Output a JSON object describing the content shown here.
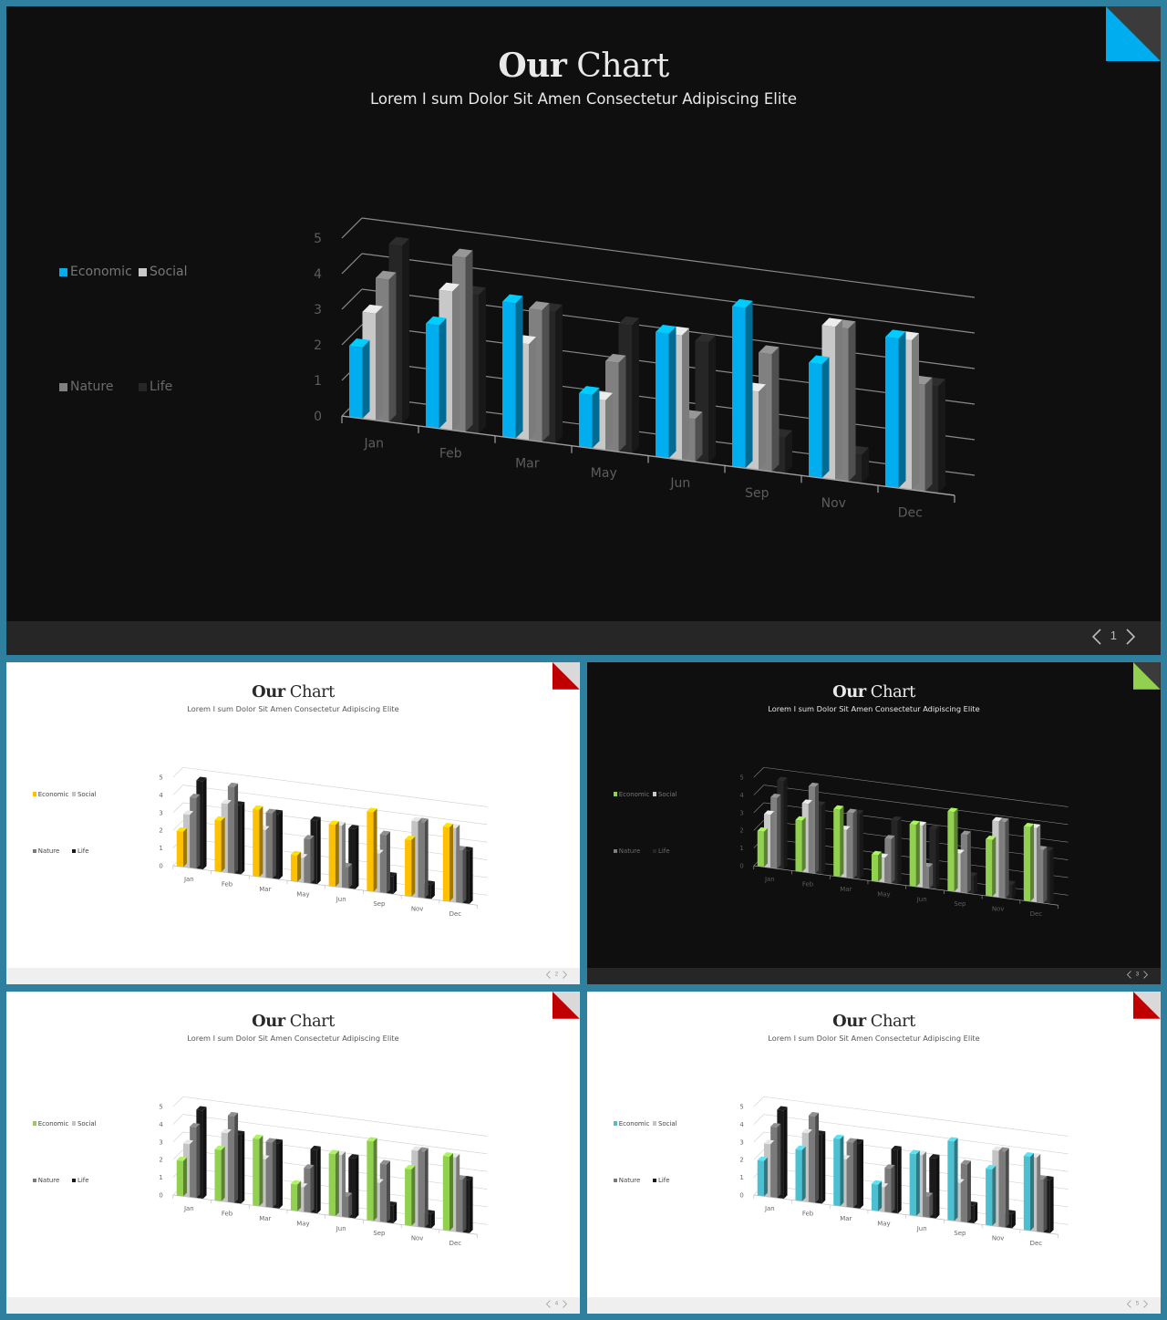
{
  "slides": [
    {
      "id": "s1",
      "title_bold": "Our",
      "title_rest": "Chart",
      "subtitle": "Lorem I sum Dolor Sit Amen Consectetur Adipiscing Elite",
      "page": "1",
      "theme": "dark",
      "accent": "#00aeef",
      "corner_back": "#3b3b3b"
    },
    {
      "id": "s2",
      "title_bold": "Our",
      "title_rest": "Chart",
      "subtitle": "Lorem I sum Dolor Sit Amen Consectetur Adipiscing Elite",
      "page": "2",
      "theme": "light",
      "accent": "#ffc000",
      "corner_back": "#d9d9d9",
      "corner": "#c00000"
    },
    {
      "id": "s3",
      "title_bold": "Our",
      "title_rest": "Chart",
      "subtitle": "Lorem I sum Dolor Sit Amen Consectetur Adipiscing Elite",
      "page": "3",
      "theme": "dark",
      "accent": "#92d050",
      "corner_back": "#3b3b3b"
    },
    {
      "id": "s4",
      "title_bold": "Our",
      "title_rest": "Chart",
      "subtitle": "Lorem I sum Dolor Sit Amen Consectetur Adipiscing Elite",
      "page": "4",
      "theme": "light",
      "accent": "#92d050",
      "corner_back": "#d9d9d9",
      "corner": "#c00000"
    },
    {
      "id": "s5",
      "title_bold": "Our",
      "title_rest": "Chart",
      "subtitle": "Lorem I sum Dolor Sit Amen Consectetur Adipiscing Elite",
      "page": "5",
      "theme": "light",
      "accent": "#4bc0d0",
      "corner_back": "#d9d9d9",
      "corner": "#c00000"
    }
  ],
  "icons": {
    "prev": "chevron-left-icon",
    "next": "chevron-right-icon"
  },
  "chart_data": {
    "type": "bar",
    "categories": [
      "Jan",
      "Feb",
      "Mar",
      "May",
      "Jun",
      "Sep",
      "Nov",
      "Dec"
    ],
    "series": [
      {
        "name": "Economic",
        "values": [
          2.0,
          2.9,
          3.8,
          1.5,
          3.5,
          4.5,
          3.2,
          4.2
        ]
      },
      {
        "name": "Social",
        "values": [
          3.0,
          3.9,
          2.7,
          1.4,
          3.5,
          2.2,
          4.3,
          4.2
        ]
      },
      {
        "name": "Nature",
        "values": [
          4.0,
          4.9,
          3.7,
          2.5,
          1.2,
          3.3,
          4.3,
          3.0
        ]
      },
      {
        "name": "Life",
        "values": [
          5.0,
          3.9,
          3.7,
          3.6,
          3.4,
          1.0,
          0.8,
          3.0
        ]
      }
    ],
    "yticks": [
      "0",
      "1",
      "2",
      "3",
      "4",
      "5"
    ],
    "ylim": [
      0,
      5
    ],
    "legend_position": "left"
  }
}
